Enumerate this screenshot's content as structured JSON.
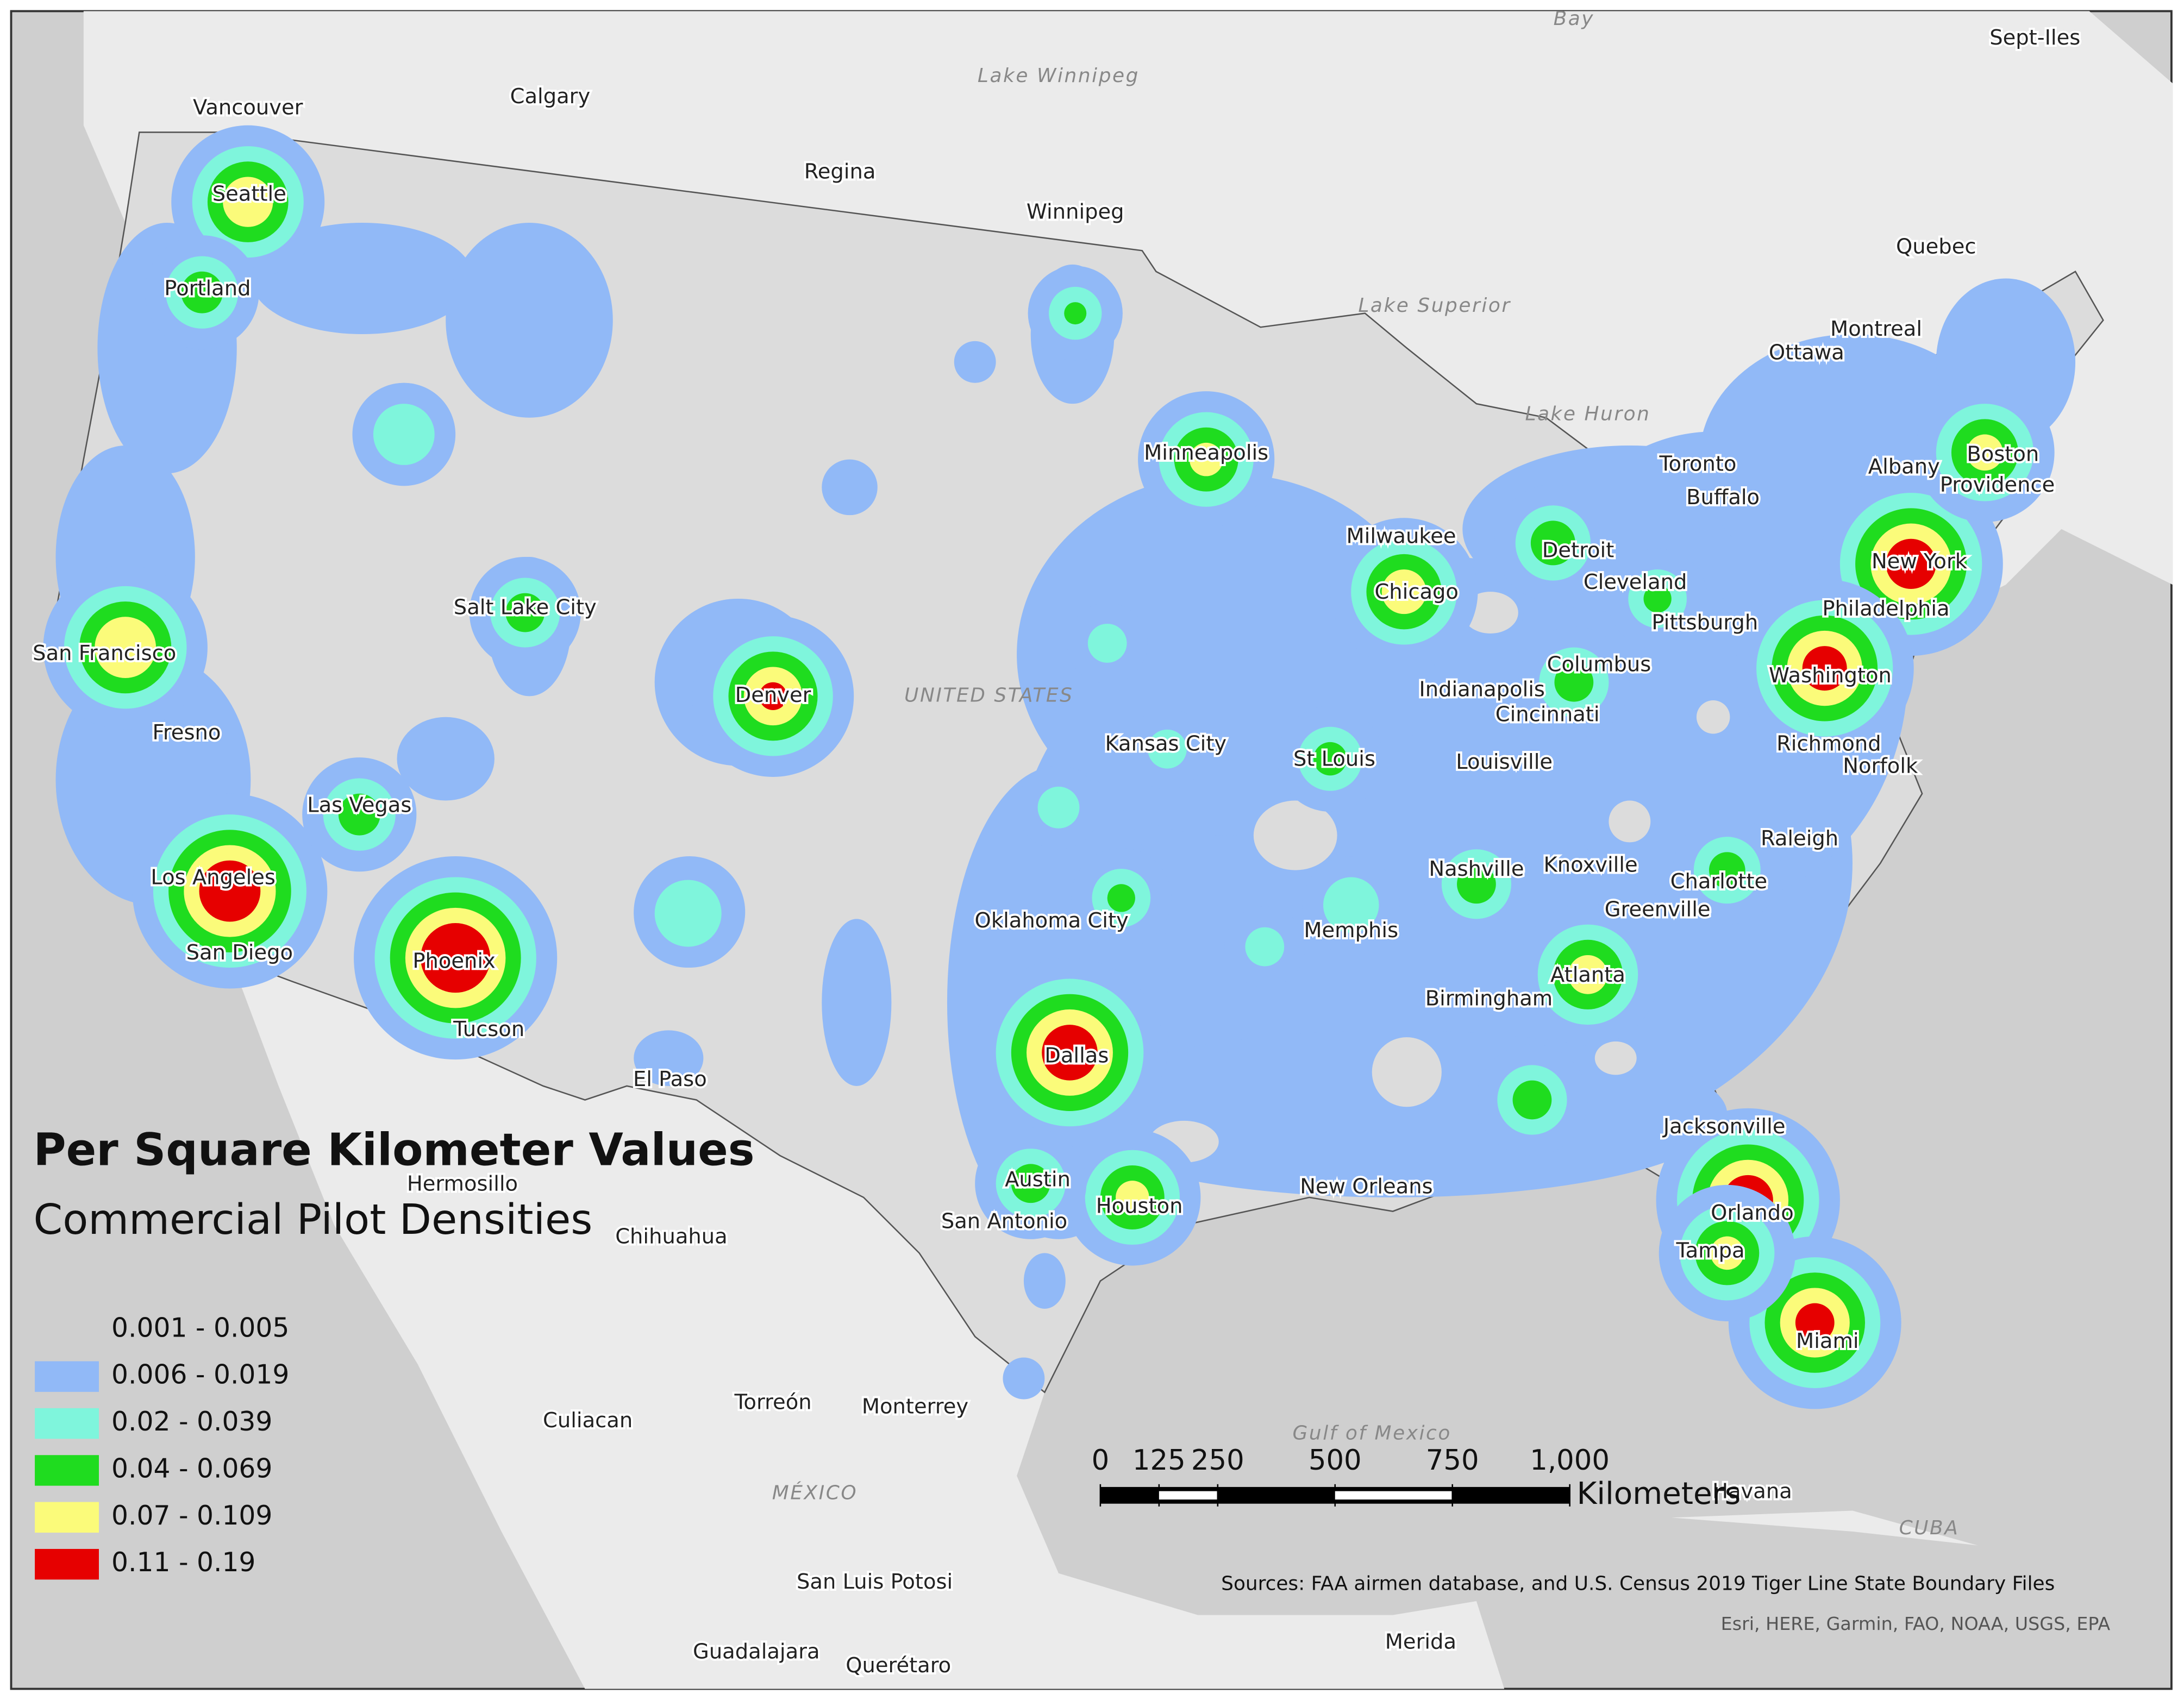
{
  "legend": {
    "title": "Per Square Kilometer Values",
    "subtitle": "Commercial Pilot Densities",
    "classes": [
      {
        "label": "0.001 - 0.005",
        "color": "#dcdcdc"
      },
      {
        "label": "0.006 - 0.019",
        "color": "#91b9f7"
      },
      {
        "label": "0.02 - 0.039",
        "color": "#7ff5dc"
      },
      {
        "label": "0.04 - 0.069",
        "color": "#1fdc1f"
      },
      {
        "label": "0.07 - 0.109",
        "color": "#fbfb7a"
      },
      {
        "label": "0.11 - 0.19",
        "color": "#e60000"
      }
    ]
  },
  "cities": [
    "Seattle",
    "Portland",
    "San Francisco",
    "Fresno",
    "Las Vegas",
    "Los Angeles",
    "San Diego",
    "Phoenix",
    "Tucson",
    "Salt Lake City",
    "Denver",
    "El Paso",
    "Minneapolis",
    "Milwaukee",
    "Chicago",
    "Detroit",
    "Cleveland",
    "Pittsburgh",
    "Columbus",
    "Indianapolis",
    "Cincinnati",
    "Louisville",
    "Kansas City",
    "St Louis",
    "Oklahoma City",
    "Dallas",
    "Austin",
    "San Antonio",
    "Houston",
    "New Orleans",
    "Memphis",
    "Nashville",
    "Knoxville",
    "Birmingham",
    "Atlanta",
    "Charlotte",
    "Greenville",
    "Raleigh",
    "Richmond",
    "Norfolk",
    "Washington",
    "Philadelphia",
    "New York",
    "Boston",
    "Providence",
    "Albany",
    "Toronto",
    "Buffalo",
    "Jacksonville",
    "Orlando",
    "Tampa",
    "Miami",
    "Vancouver",
    "Calgary",
    "Regina",
    "Winnipeg",
    "Montreal",
    "Ottawa",
    "Quebec",
    "Hermosillo",
    "Chihuahua",
    "Torreón",
    "Monterrey",
    "Culiacan",
    "San Luis Potosi",
    "Guadalajara",
    "Querétaro",
    "Merida",
    "Havana",
    "Sept-Iles"
  ],
  "reference_labels": [
    "Lake Winnipeg",
    "Lake Superior",
    "Lake Huron",
    "Gulf of Mexico",
    "UNITED STATES",
    "MÉXICO",
    "CUBA",
    "Bay"
  ],
  "scale_bar": {
    "unit": "Kilometers",
    "range": [
      0,
      1000
    ],
    "ticks": [
      0,
      125,
      250,
      500,
      750,
      {
        "value": 1000,
        "label": "1,000"
      }
    ]
  },
  "sources": "Sources: FAA airmen database,  and U.S. Census 2019 Tiger Line State Boundary Files",
  "attribution": "Esri, HERE, Garmin, FAO, NOAA, USGS, EPA"
}
